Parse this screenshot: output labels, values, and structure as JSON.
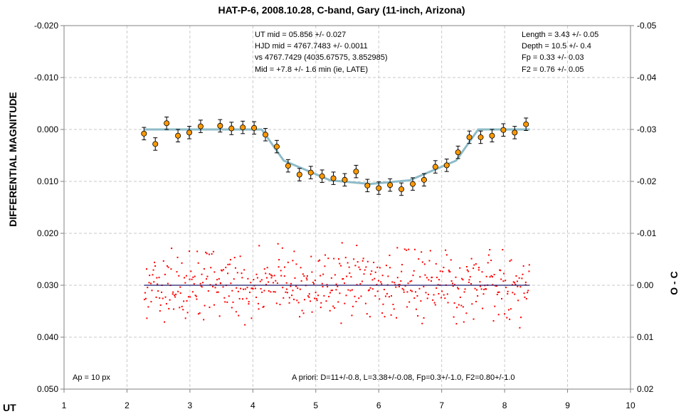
{
  "chart_data": {
    "type": "scatter",
    "title": "HAT-P-6, 2008.10.28, C-band, Gary (11-inch, Arizona)",
    "xlabel": "UT",
    "ylabel": "DIFFERENTIAL MAGNITUDE",
    "y2label": "O - C",
    "xlim": [
      1,
      10
    ],
    "ylim": [
      0.05,
      -0.02
    ],
    "y2lim": [
      0.02,
      -0.05
    ],
    "y_inverted": true,
    "grid": true,
    "x_ticks": [
      "1",
      "2",
      "3",
      "4",
      "5",
      "6",
      "7",
      "8",
      "9",
      "10"
    ],
    "y_ticks": [
      "-0.020",
      "-0.010",
      "0.000",
      "0.010",
      "0.020",
      "0.030",
      "0.040",
      "0.050"
    ],
    "y2_ticks": [
      "-0.05",
      "-0.04",
      "-0.03",
      "-0.02",
      "-0.01",
      "0.00",
      "0.01",
      "0.02"
    ],
    "annotations": {
      "top_center": [
        "UT mid = 05.856 +/- 0.027",
        "HJD mid = 4767.7483 +/- 0.0011",
        "vs 4767.7429 (4035.67575, 3.852985)",
        "Mid = +7.8 +/- 1.6 min (ie, LATE)"
      ],
      "top_right": [
        "Length = 3.43 +/- 0.05",
        "Depth = 10.5 +/- 0.4",
        "Fp = 0.33 +/- 0.03",
        "F2 = 0.76 +/- 0.05"
      ],
      "bottom_left": "Ap = 10 px",
      "bottom_right": "A priori: D=11+/-0.8, L=3.38+/-0.08, Fp=0.3+/-1.0, F2=0.80+/-1.0"
    },
    "series": [
      {
        "kind": "binned_points_with_error_bars",
        "color": "#ff9900",
        "x": [
          2.27,
          2.45,
          2.63,
          2.81,
          2.99,
          3.17,
          3.48,
          3.66,
          3.84,
          4.02,
          4.2,
          4.38,
          4.56,
          4.74,
          4.92,
          5.1,
          5.28,
          5.46,
          5.64,
          5.82,
          6.0,
          6.18,
          6.36,
          6.54,
          6.72,
          6.9,
          7.08,
          7.26,
          7.44,
          7.62,
          7.8,
          7.98,
          8.16,
          8.34
        ],
        "y": [
          0.0008,
          0.0028,
          -0.0012,
          0.0012,
          0.0006,
          -0.0006,
          -0.0007,
          -0.0002,
          -0.0004,
          -0.0003,
          0.001,
          0.0033,
          0.007,
          0.0087,
          0.0083,
          0.009,
          0.0094,
          0.0097,
          0.0081,
          0.0108,
          0.0113,
          0.0107,
          0.0115,
          0.0105,
          0.0097,
          0.0072,
          0.0069,
          0.0044,
          0.0015,
          0.0015,
          0.0012,
          0.0001,
          0.0006,
          -0.001
        ],
        "err": 0.0012
      },
      {
        "kind": "model_line",
        "color": "#8ebcc8",
        "x": [
          2.27,
          4.14,
          4.49,
          5.23,
          5.86,
          6.49,
          7.23,
          7.58,
          8.4
        ],
        "y": [
          0.0,
          0.0,
          0.006,
          0.0098,
          0.0105,
          0.0098,
          0.006,
          0.0,
          0.0
        ]
      },
      {
        "kind": "residuals",
        "axis": "y2",
        "color": "#ff0000",
        "x_range": [
          2.27,
          8.4
        ],
        "count": 560,
        "spread": 0.0095,
        "zero_line_color": "#1a1a6e"
      }
    ]
  }
}
